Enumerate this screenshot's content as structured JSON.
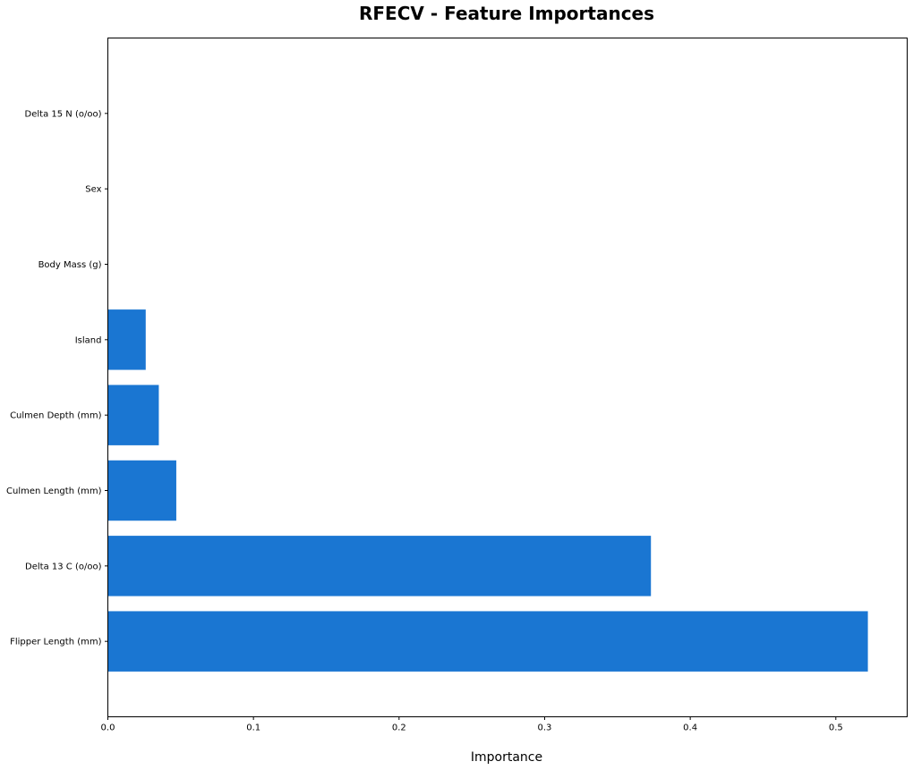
{
  "chart_data": {
    "type": "bar",
    "orientation": "horizontal",
    "title": "RFECV - Feature Importances",
    "xlabel": "Importance",
    "ylabel": "",
    "categories": [
      "Flipper Length (mm)",
      "Delta 13 C (o/oo)",
      "Culmen Length (mm)",
      "Culmen Depth (mm)",
      "Island",
      "Body Mass (g)",
      "Sex",
      "Delta 15 N (o/oo)"
    ],
    "values": [
      0.522,
      0.373,
      0.047,
      0.035,
      0.026,
      0,
      0,
      0
    ],
    "xlim": [
      0,
      0.549
    ],
    "xticks": [
      0.0,
      0.1,
      0.2,
      0.3,
      0.4,
      0.5
    ],
    "xtick_labels": [
      "0.0",
      "0.1",
      "0.2",
      "0.3",
      "0.4",
      "0.5"
    ],
    "grid": false,
    "legend": "none",
    "bar_color": "#1a76d2"
  }
}
